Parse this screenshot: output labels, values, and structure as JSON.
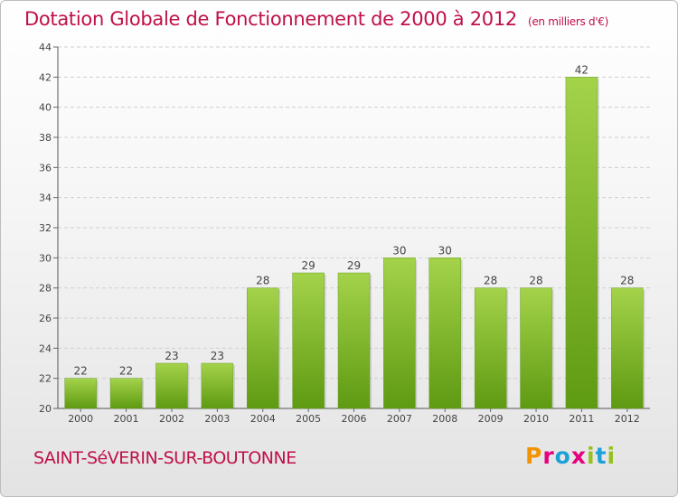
{
  "title": "Dotation Globale de Fonctionnement de 2000 à 2012",
  "unit_label": "(en milliers d'€)",
  "commune": "SAINT-SéVERIN-SUR-BOUTONNE",
  "logo": {
    "text": "Proxiti",
    "letters": [
      "P",
      "r",
      "o",
      "x",
      "i",
      "t",
      "i"
    ],
    "colors": [
      "#f29400",
      "#e5007e",
      "#1da1d8",
      "#e5007e",
      "#95c11f",
      "#1da1d8",
      "#95c11f"
    ]
  },
  "colors": {
    "bar_top": "#a4d34a",
    "bar_bottom": "#5e9a12",
    "title": "#c01048"
  },
  "chart_data": {
    "type": "bar",
    "title": "Dotation Globale de Fonctionnement de 2000 à 2012",
    "subtitle": "(en milliers d'€)",
    "xlabel": "",
    "ylabel": "",
    "categories": [
      "2000",
      "2001",
      "2002",
      "2003",
      "2004",
      "2005",
      "2006",
      "2007",
      "2008",
      "2009",
      "2010",
      "2011",
      "2012"
    ],
    "values": [
      22,
      22,
      23,
      23,
      28,
      29,
      29,
      30,
      30,
      28,
      28,
      42,
      28
    ],
    "ylim": [
      20,
      44
    ],
    "yticks": [
      20,
      22,
      24,
      26,
      28,
      30,
      32,
      34,
      36,
      38,
      40,
      42,
      44
    ],
    "grid": true,
    "legend": "none"
  }
}
